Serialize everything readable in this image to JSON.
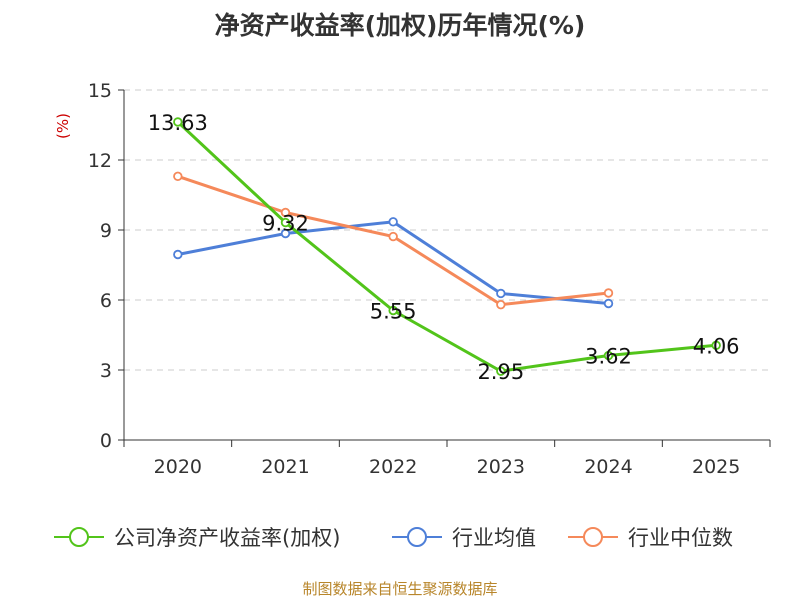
{
  "chart_data": {
    "type": "line",
    "title": "净资产收益率(加权)历年情况(%)",
    "ylabel": "(%)",
    "xlabel": "",
    "categories": [
      "2020",
      "2021",
      "2022",
      "2023",
      "2024",
      "2025"
    ],
    "ylim": [
      0,
      15
    ],
    "yticks": [
      0,
      3,
      6,
      9,
      12,
      15
    ],
    "grid": true,
    "legend_position": "bottom",
    "series": [
      {
        "name": "公司净资产收益率(加权)",
        "color": "#52c41a",
        "values": [
          13.63,
          9.32,
          5.55,
          2.95,
          3.62,
          4.06
        ],
        "labels": [
          "13.63",
          "9.32",
          "5.55",
          "2.95",
          "3.62",
          "4.06"
        ]
      },
      {
        "name": "行业均值",
        "color": "#4e7fd8",
        "values": [
          7.95,
          8.85,
          9.35,
          6.28,
          5.85,
          null
        ]
      },
      {
        "name": "行业中位数",
        "color": "#f5895a",
        "values": [
          11.3,
          9.75,
          8.72,
          5.8,
          6.3,
          null
        ]
      }
    ]
  },
  "source": "制图数据来自恒生聚源数据库"
}
